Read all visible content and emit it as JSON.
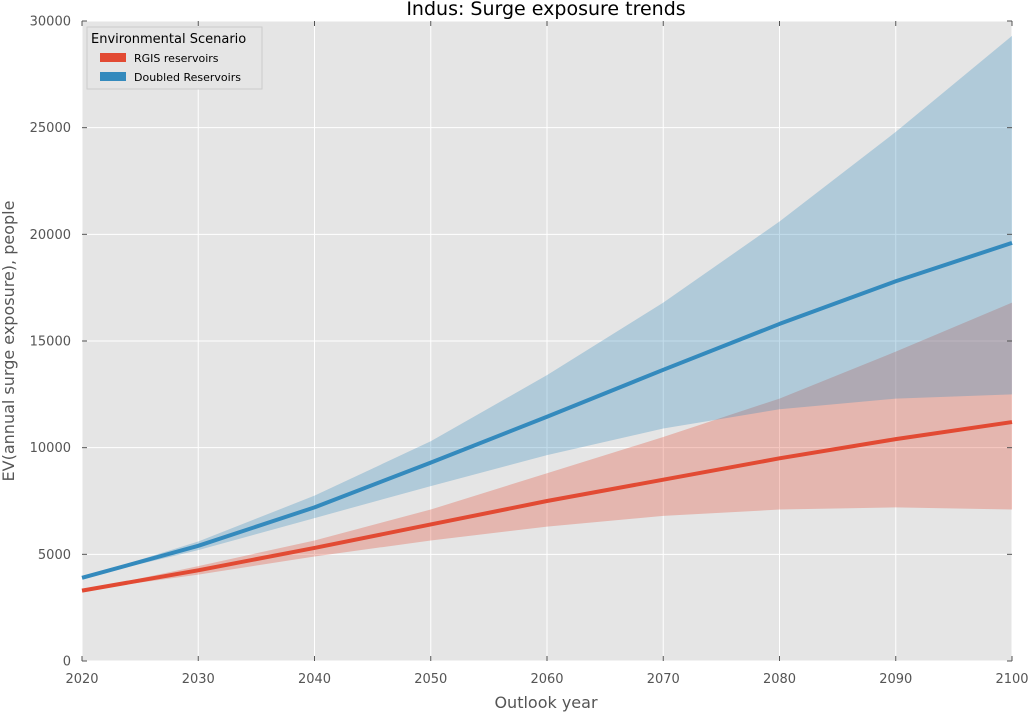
{
  "chart_data": {
    "type": "line",
    "title": "Indus: Surge exposure trends",
    "xlabel": "Outlook year",
    "ylabel": "EV(annual surge exposure), people",
    "xlim": [
      2020,
      2100
    ],
    "ylim": [
      0,
      30000
    ],
    "x_ticks": [
      2020,
      2030,
      2040,
      2050,
      2060,
      2070,
      2080,
      2090,
      2100
    ],
    "y_ticks": [
      0,
      5000,
      10000,
      15000,
      20000,
      25000,
      30000
    ],
    "grid": true,
    "legend": {
      "title": "Environmental Scenario",
      "position": "top-left"
    },
    "x": [
      2020,
      2030,
      2040,
      2050,
      2060,
      2070,
      2080,
      2090,
      2100
    ],
    "series": [
      {
        "name": "RGIS reservoirs",
        "color": "#e24a33",
        "values": [
          3300,
          4250,
          5300,
          6400,
          7500,
          8500,
          9500,
          10400,
          11200
        ],
        "lower": [
          3300,
          4050,
          4900,
          5650,
          6300,
          6800,
          7100,
          7200,
          7100
        ],
        "upper": [
          3300,
          4450,
          5650,
          7100,
          8800,
          10500,
          12300,
          14500,
          16800
        ]
      },
      {
        "name": "Doubled Reservoirs",
        "color": "#348abd",
        "values": [
          3900,
          5400,
          7200,
          9300,
          11450,
          13650,
          15800,
          17800,
          19600
        ],
        "lower": [
          3900,
          5200,
          6700,
          8200,
          9650,
          10900,
          11800,
          12300,
          12500
        ],
        "upper": [
          3900,
          5600,
          7750,
          10300,
          13400,
          16800,
          20600,
          24800,
          29300
        ]
      }
    ]
  }
}
